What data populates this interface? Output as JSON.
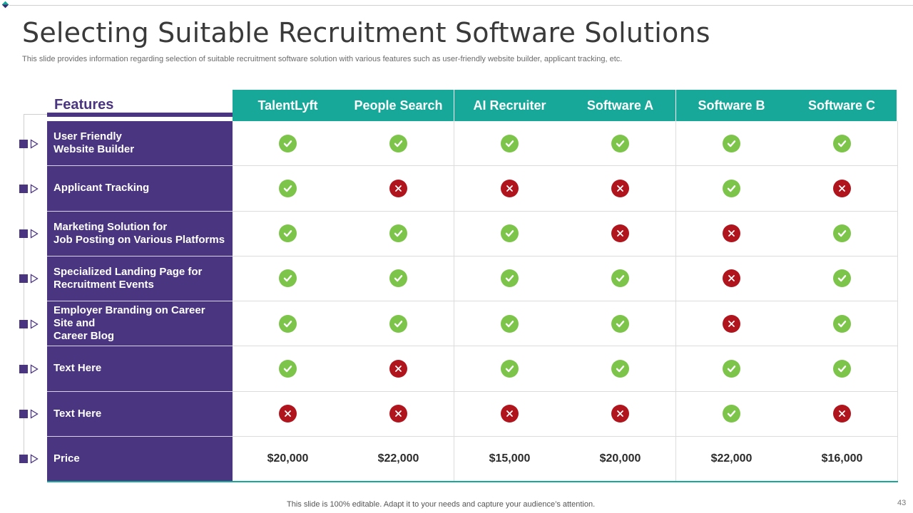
{
  "slide": {
    "title": "Selecting Suitable Recruitment Software Solutions",
    "subtitle": "This slide provides information regarding selection of suitable recruitment software solution with various features such as user-friendly website builder, applicant tracking, etc.",
    "footer": "This slide is 100% editable. Adapt it to your needs and capture your audience’s attention.",
    "page_number": "43"
  },
  "colors": {
    "teal": "#17a89a",
    "purple": "#4a3580",
    "check": "#7cc54a",
    "cross": "#b0141d"
  },
  "table": {
    "features_header": "Features",
    "columns": [
      "TalentLyft",
      "People Search",
      "AI Recruiter",
      "Software A",
      "Software B",
      "Software C"
    ],
    "rows": [
      {
        "feature": [
          "User Friendly",
          "Website Builder"
        ],
        "values": [
          "check",
          "check",
          "check",
          "check",
          "check",
          "check"
        ]
      },
      {
        "feature": [
          "Applicant Tracking"
        ],
        "values": [
          "check",
          "cross",
          "cross",
          "cross",
          "check",
          "cross"
        ]
      },
      {
        "feature": [
          "Marketing Solution for",
          "Job Posting on Various Platforms"
        ],
        "values": [
          "check",
          "check",
          "check",
          "cross",
          "cross",
          "check"
        ]
      },
      {
        "feature": [
          "Specialized Landing Page for",
          "Recruitment Events"
        ],
        "values": [
          "check",
          "check",
          "check",
          "check",
          "cross",
          "check"
        ]
      },
      {
        "feature": [
          "Employer Branding on Career",
          "Site and",
          "Career Blog"
        ],
        "values": [
          "check",
          "check",
          "check",
          "check",
          "cross",
          "check"
        ]
      },
      {
        "feature": [
          "Text Here"
        ],
        "values": [
          "check",
          "cross",
          "check",
          "check",
          "check",
          "check"
        ]
      },
      {
        "feature": [
          "Text Here"
        ],
        "values": [
          "cross",
          "cross",
          "cross",
          "cross",
          "check",
          "cross"
        ]
      },
      {
        "feature": [
          "Price"
        ],
        "values": [
          "$20,000",
          "$22,000",
          "$15,000",
          "$20,000",
          "$22,000",
          "$16,000"
        ]
      }
    ]
  }
}
